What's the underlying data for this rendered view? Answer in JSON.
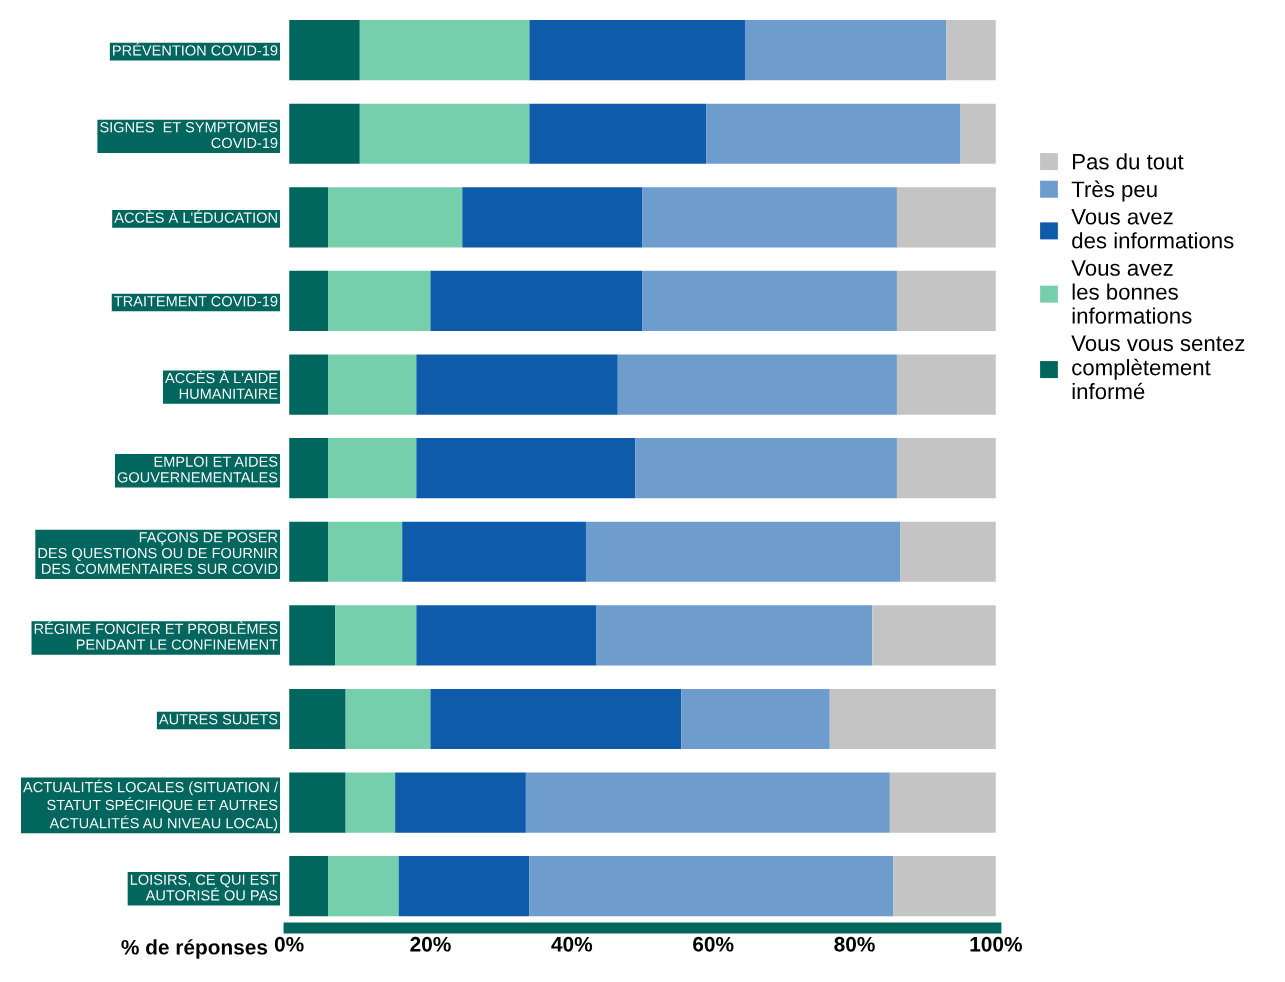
{
  "chart_data": {
    "type": "bar",
    "orientation": "horizontal",
    "stacked": true,
    "categories": [
      "PRÉVENTION COVID-19",
      "SIGNES  ET SYMPTOMES\nCOVID-19",
      "ACCÈS À L'ÉDUCATION",
      "TRAITEMENT COVID-19",
      "ACCÈS À L'AIDE\nHUMANITAIRE",
      "EMPLOI ET AIDES\nGOUVERNEMENTALES",
      "FAÇONS DE POSER\nDES QUESTIONS OU DE FOURNIR\nDES COMMENTAIRES SUR COVID",
      "RÉGIME FONCIER ET PROBLÈMES\nPENDANT LE CONFINEMENT",
      "AUTRES SUJETS",
      "ACTUALITÉS LOCALES (SITUATION /\nSTATUT SPÉCIFIQUE ET AUTRES\nACTUALITÉS AU NIVEAU LOCAL)",
      "LOISIRS, CE QUI EST\nAUTORISÉ OU PAS"
    ],
    "series": [
      {
        "name": "Vous vous sentez\ncomplètement\ninformé",
        "color": "#00665e",
        "values": [
          10,
          10,
          5.5,
          5.5,
          5.5,
          5.5,
          5.5,
          6.5,
          8,
          8,
          5.5
        ]
      },
      {
        "name": "Vous avez\nles bonnes\ninformations",
        "color": "#76cfac",
        "values": [
          24,
          24,
          19,
          14.5,
          12.5,
          12.5,
          10.5,
          11.5,
          12,
          7,
          10
        ]
      },
      {
        "name": "Vous avez\ndes informations",
        "color": "#0e5baa",
        "values": [
          30.5,
          25,
          25.5,
          30,
          28.5,
          31,
          26,
          25.5,
          35.5,
          18.5,
          18.5
        ]
      },
      {
        "name": "Très peu",
        "color": "#6e9ccc",
        "values": [
          28.5,
          36,
          36,
          36,
          39.5,
          37,
          44.5,
          39,
          21,
          51.5,
          51.5
        ]
      },
      {
        "name": "Pas du tout",
        "color": "#c4c4c4",
        "values": [
          7,
          5,
          14,
          14,
          14,
          14,
          13.5,
          17.5,
          23.5,
          15,
          14.5
        ]
      }
    ],
    "xlabel": "% de réponses",
    "xlim": [
      0,
      100
    ],
    "xticks": [
      {
        "value": 0,
        "label": "0%"
      },
      {
        "value": 20,
        "label": "20%"
      },
      {
        "value": 40,
        "label": "40%"
      },
      {
        "value": 60,
        "label": "60%"
      },
      {
        "value": 80,
        "label": "80%"
      },
      {
        "value": 100,
        "label": "100%"
      }
    ],
    "legend": "right",
    "grid": false
  }
}
